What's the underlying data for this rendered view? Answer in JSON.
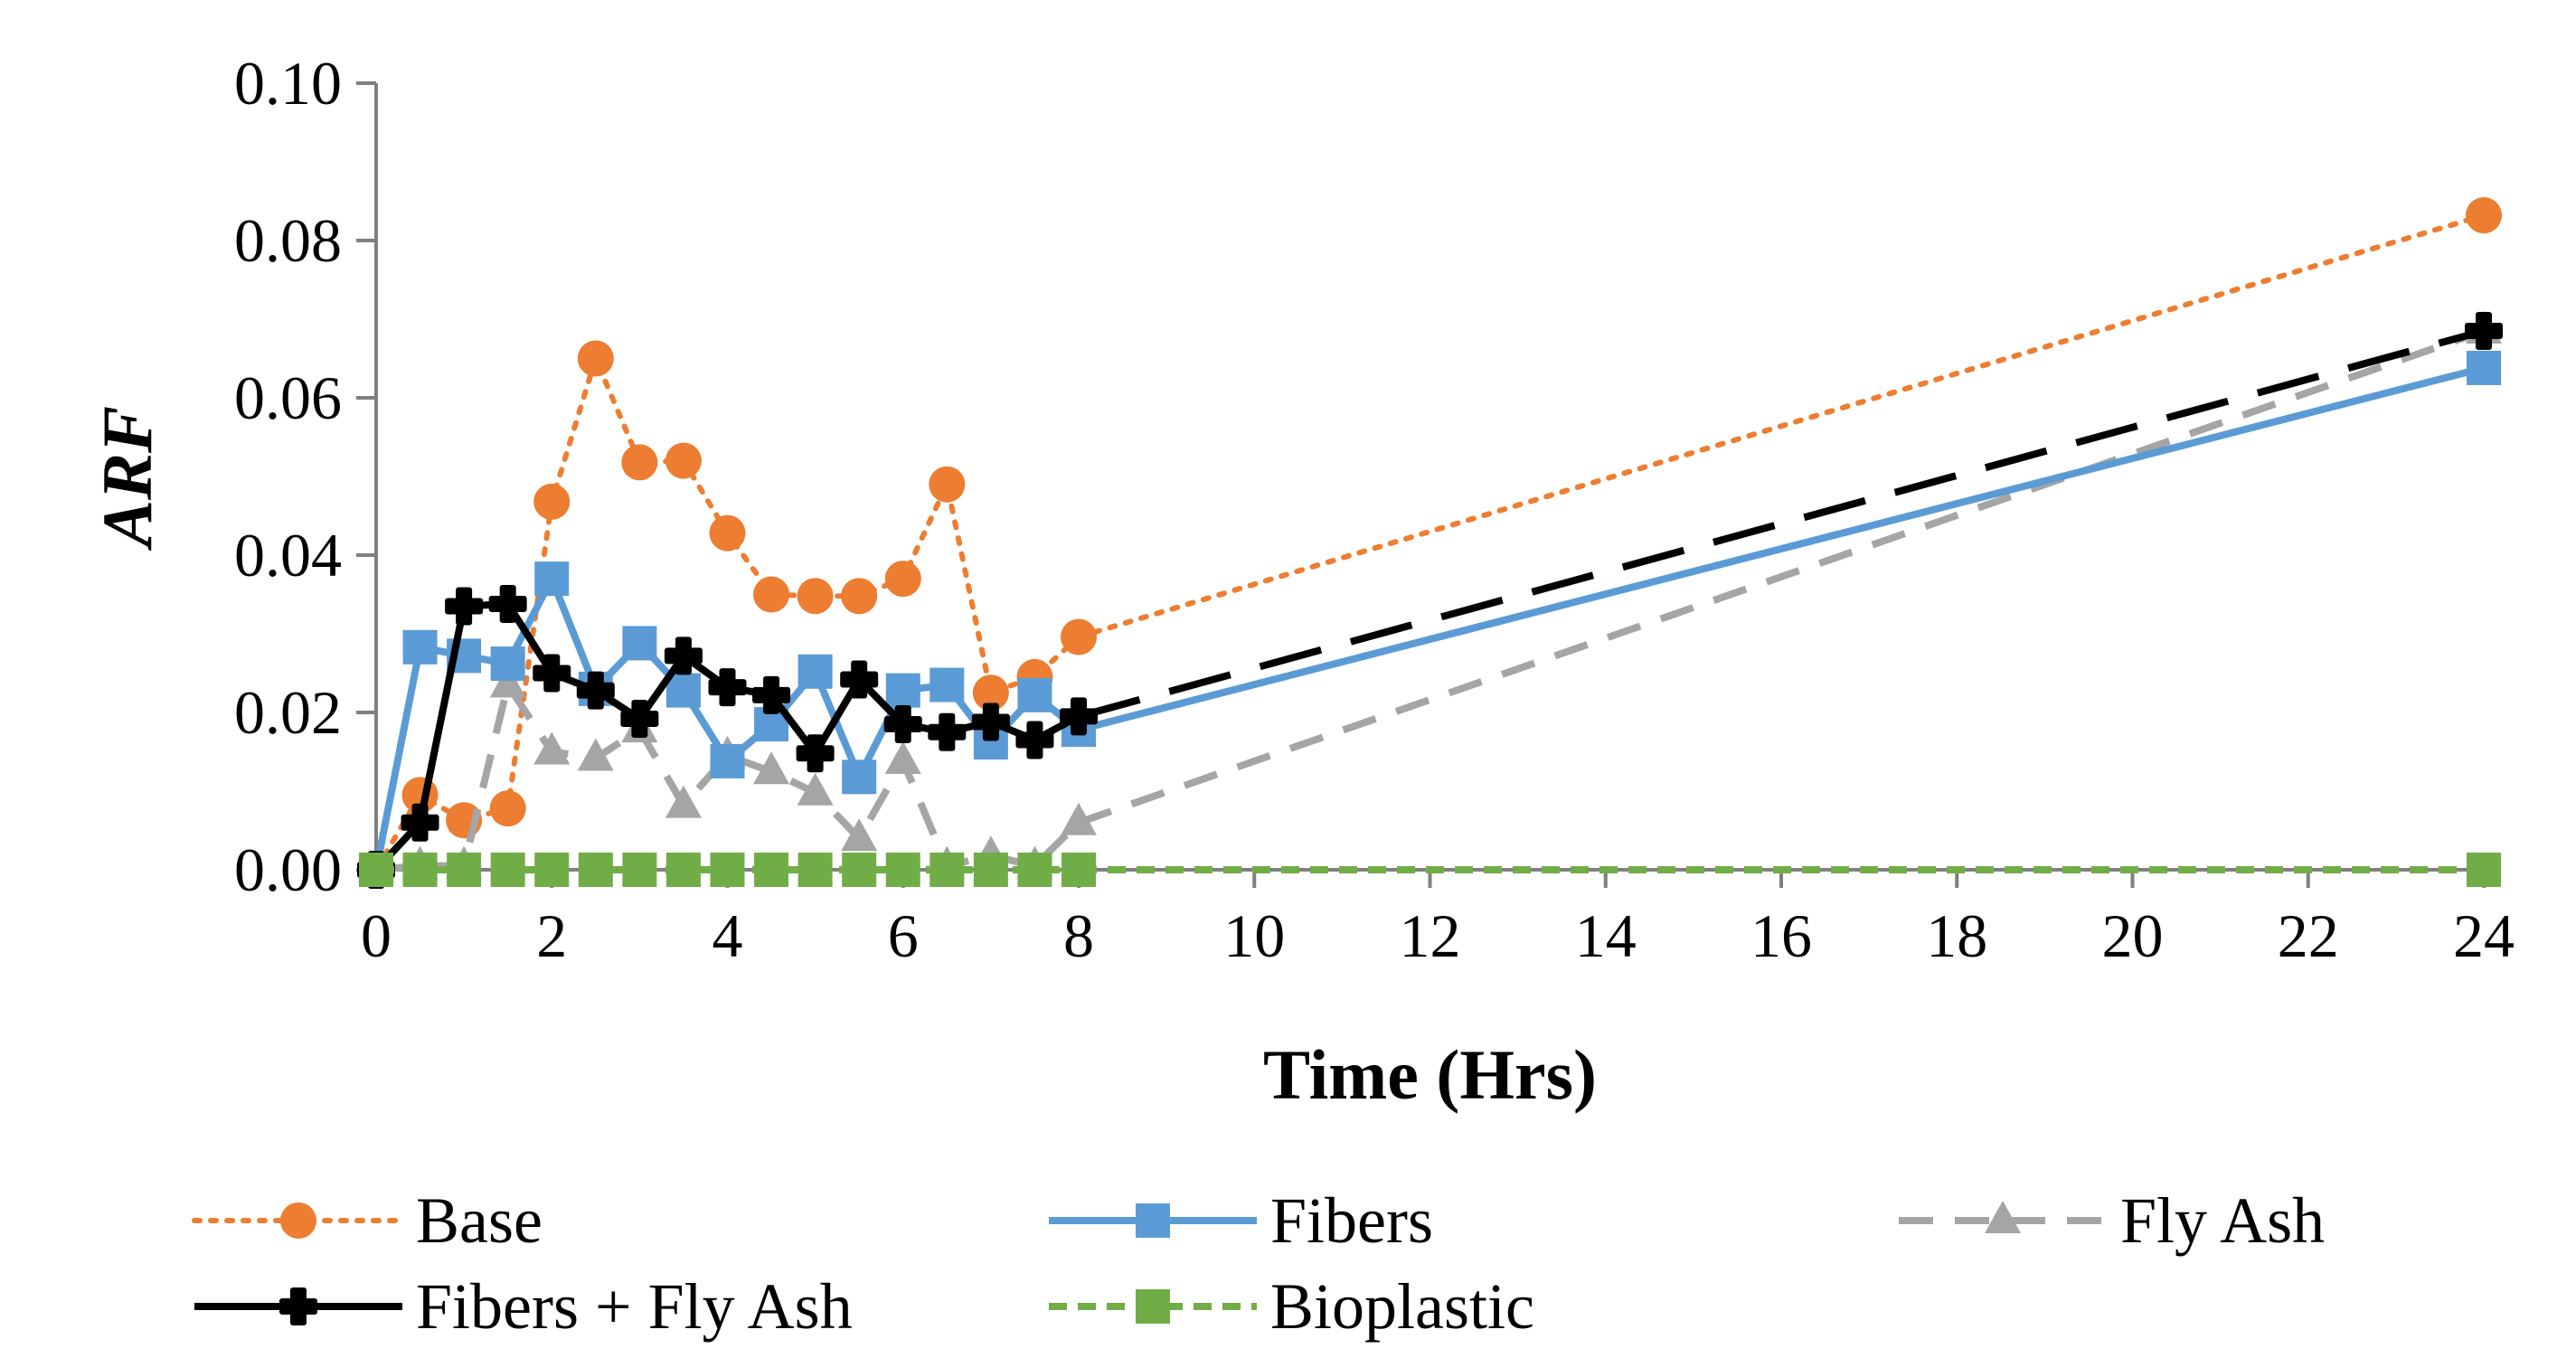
{
  "chart_data": {
    "type": "line",
    "title": "",
    "xlabel": "Time (Hrs)",
    "ylabel": "ARF",
    "xlim": [
      0,
      24
    ],
    "ylim": [
      0,
      0.1
    ],
    "xticks": [
      0,
      2,
      4,
      6,
      8,
      10,
      12,
      14,
      16,
      18,
      20,
      22,
      24
    ],
    "xtick_labels": [
      "0",
      "2",
      "4",
      "6",
      "8",
      "10",
      "12",
      "14",
      "16",
      "18",
      "20",
      "22",
      "24"
    ],
    "yticks": [
      0,
      0.02,
      0.04,
      0.06,
      0.08,
      0.1
    ],
    "ytick_labels": [
      "0.00",
      "0.02",
      "0.04",
      "0.06",
      "0.08",
      "0.10"
    ],
    "grid": false,
    "legend_position": "bottom",
    "x": [
      0,
      0.5,
      1,
      1.5,
      2,
      2.5,
      3,
      3.5,
      4,
      4.5,
      5,
      5.5,
      6,
      6.5,
      7,
      7.5,
      8,
      24
    ],
    "series": [
      {
        "name": "Base",
        "color": "#ED7D31",
        "marker": "circle",
        "dash": "dotted",
        "values": [
          0,
          0.0095,
          0.0063,
          0.0078,
          0.0468,
          0.065,
          0.0518,
          0.052,
          0.0428,
          0.035,
          0.0348,
          0.0348,
          0.037,
          0.049,
          0.0225,
          0.0245,
          0.0296,
          0.0832
        ]
      },
      {
        "name": "Fibers",
        "color": "#5B9BD5",
        "marker": "square",
        "dash": "solid",
        "values": [
          0,
          0.0283,
          0.0272,
          0.0262,
          0.037,
          0.023,
          0.0288,
          0.0228,
          0.0138,
          0.0185,
          0.0252,
          0.0118,
          0.0228,
          0.0235,
          0.0162,
          0.0222,
          0.0178,
          0.0638
        ]
      },
      {
        "name": "Fly Ash",
        "color": "#A5A5A5",
        "marker": "triangle",
        "dash": "dashed",
        "values": [
          0,
          0.0005,
          0.0005,
          0.0235,
          0.015,
          0.0142,
          0.0178,
          0.0082,
          0.0145,
          0.0125,
          0.0098,
          0.004,
          0.0138,
          0.0005,
          0.0018,
          0.0005,
          0.006,
          0.0685
        ]
      },
      {
        "name": "Fibers + Fly Ash",
        "color": "#000000",
        "marker": "cross",
        "dash": "longdash",
        "values": [
          0,
          0.006,
          0.0335,
          0.0338,
          0.025,
          0.0228,
          0.0192,
          0.0272,
          0.0232,
          0.0222,
          0.0148,
          0.0242,
          0.0185,
          0.0175,
          0.0188,
          0.0165,
          0.0195,
          0.0685
        ]
      },
      {
        "name": "Bioplastic",
        "color": "#70AD47",
        "marker": "square",
        "dash": "shortdash",
        "values": [
          0,
          0,
          0,
          0,
          0,
          0,
          0,
          0,
          0,
          0,
          0,
          0,
          0,
          0,
          0,
          0,
          0,
          0
        ]
      }
    ]
  }
}
